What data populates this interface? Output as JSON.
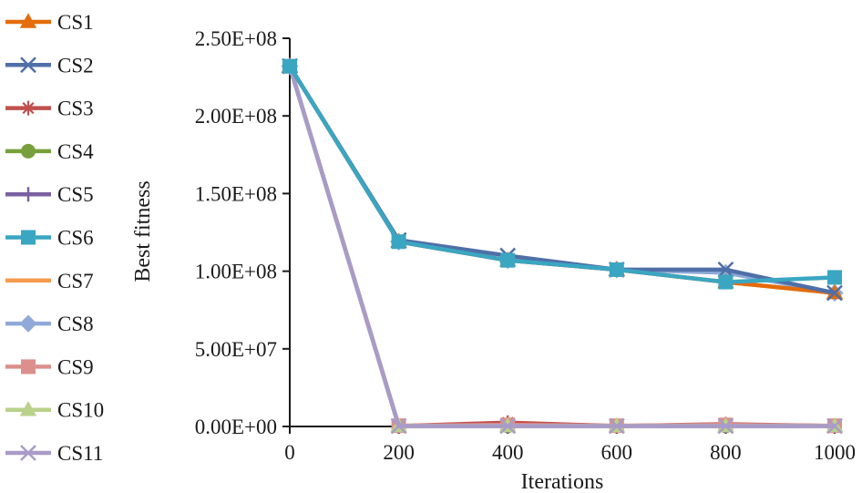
{
  "chart_data": {
    "type": "line",
    "title": "",
    "xlabel": "Iterations",
    "ylabel": "Best fitness",
    "x": [
      0,
      200,
      400,
      600,
      800,
      1000
    ],
    "x_ticks": [
      "0",
      "200",
      "400",
      "600",
      "800",
      "1000"
    ],
    "xlim": [
      0,
      1000
    ],
    "ylim": [
      0,
      250000000
    ],
    "y_ticks": [
      {
        "value": 0,
        "label": "0.00E+00"
      },
      {
        "value": 50000000,
        "label": "5.00E+07"
      },
      {
        "value": 100000000,
        "label": "1.00E+08"
      },
      {
        "value": 150000000,
        "label": "1.50E+08"
      },
      {
        "value": 200000000,
        "label": "2.00E+08"
      },
      {
        "value": 250000000,
        "label": "2.50E+08"
      }
    ],
    "grid": false,
    "legend_position": "left",
    "series": [
      {
        "name": "CS1",
        "color": "#e46c0a",
        "marker": "triangle",
        "values": [
          232000000,
          119000000,
          107000000,
          101000000,
          93000000,
          86000000
        ]
      },
      {
        "name": "CS2",
        "color": "#4f6fa8",
        "marker": "x",
        "values": [
          232000000,
          120000000,
          110000000,
          101000000,
          101000000,
          86000000
        ]
      },
      {
        "name": "CS3",
        "color": "#c0504d",
        "marker": "asterisk",
        "values": [
          232000000,
          300000,
          2500000,
          300000,
          1500000,
          300000
        ]
      },
      {
        "name": "CS4",
        "color": "#77a03c",
        "marker": "circle",
        "values": [
          232000000,
          300000,
          300000,
          300000,
          300000,
          300000
        ]
      },
      {
        "name": "CS5",
        "color": "#7a60a0",
        "marker": "plus",
        "values": [
          232000000,
          300000,
          300000,
          300000,
          300000,
          300000
        ]
      },
      {
        "name": "CS6",
        "color": "#3aa6c2",
        "marker": "square",
        "values": [
          232000000,
          119000000,
          107000000,
          101000000,
          93000000,
          96000000
        ]
      },
      {
        "name": "CS7",
        "color": "#f59a4c",
        "marker": "none",
        "values": [
          232000000,
          119000000,
          107000000,
          101000000,
          93000000,
          86000000
        ]
      },
      {
        "name": "CS8",
        "color": "#8faad8",
        "marker": "diamond",
        "values": [
          232000000,
          119000000,
          107000000,
          101000000,
          99000000,
          86000000
        ]
      },
      {
        "name": "CS9",
        "color": "#dc8f8c",
        "marker": "square",
        "values": [
          232000000,
          500000,
          1000000,
          500000,
          1000000,
          500000
        ]
      },
      {
        "name": "CS10",
        "color": "#b9d18a",
        "marker": "triangle",
        "values": [
          232000000,
          300000,
          300000,
          300000,
          300000,
          300000
        ]
      },
      {
        "name": "CS11",
        "color": "#a99bc8",
        "marker": "x",
        "values": [
          232000000,
          300000,
          300000,
          300000,
          300000,
          300000
        ]
      }
    ]
  }
}
